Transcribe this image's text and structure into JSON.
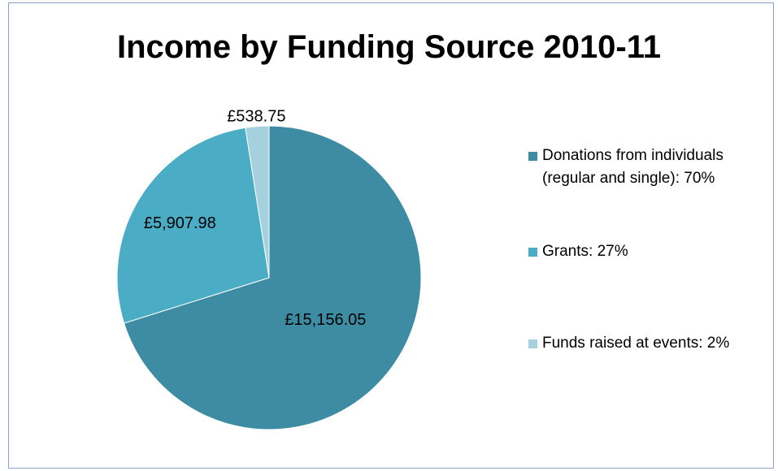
{
  "chart_data": {
    "type": "pie",
    "title": "Income by Funding Source 2010-11",
    "slices": [
      {
        "label": "£15,156.05",
        "value": 15156.05,
        "color": "#3e8ca3",
        "legend": "Donations from individuals (regular and single): 70%"
      },
      {
        "label": "£5,907.98",
        "value": 5907.98,
        "color": "#4bacc6",
        "legend": "Grants: 27%"
      },
      {
        "label": "£538.75",
        "value": 538.75,
        "color": "#a5d0de",
        "legend": "Funds raised at events: 2%"
      }
    ],
    "legend_position": "right"
  }
}
